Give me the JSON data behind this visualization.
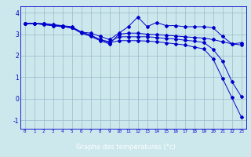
{
  "xlabel": "Graphe des températures (°c)",
  "bg_color": "#cce8ec",
  "xlabel_bg": "#3333aa",
  "xlabel_fg": "#ffffff",
  "line_color": "#0000cc",
  "grid_color": "#99bbcc",
  "x_ticks": [
    0,
    1,
    2,
    3,
    4,
    5,
    6,
    7,
    8,
    9,
    10,
    11,
    12,
    13,
    14,
    15,
    16,
    17,
    18,
    19,
    20,
    21,
    22,
    23
  ],
  "ylim": [
    -1.4,
    4.3
  ],
  "xlim": [
    -0.5,
    23.5
  ],
  "curve1_y": [
    3.5,
    3.5,
    3.5,
    3.45,
    3.4,
    3.35,
    3.1,
    3.05,
    2.9,
    2.75,
    3.05,
    3.35,
    3.8,
    3.35,
    3.55,
    3.4,
    3.4,
    3.35,
    3.35,
    3.35,
    3.3,
    2.9,
    2.55,
    2.6
  ],
  "curve2_y": [
    3.5,
    3.5,
    3.48,
    3.43,
    3.38,
    3.3,
    3.05,
    2.9,
    2.7,
    2.55,
    3.0,
    3.05,
    3.05,
    3.0,
    2.98,
    2.95,
    2.92,
    2.88,
    2.85,
    2.82,
    2.75,
    2.65,
    2.55,
    2.5
  ],
  "curve3_y": [
    3.5,
    3.5,
    3.45,
    3.4,
    3.35,
    3.3,
    3.1,
    2.95,
    2.75,
    2.65,
    2.88,
    2.88,
    2.88,
    2.88,
    2.85,
    2.8,
    2.78,
    2.72,
    2.68,
    2.62,
    2.3,
    1.75,
    0.8,
    0.1
  ],
  "curve4_y": [
    3.5,
    3.5,
    3.45,
    3.4,
    3.35,
    3.3,
    3.1,
    2.95,
    2.75,
    2.6,
    2.7,
    2.7,
    2.7,
    2.68,
    2.65,
    2.6,
    2.55,
    2.5,
    2.4,
    2.32,
    1.85,
    0.95,
    0.05,
    -0.85
  ]
}
